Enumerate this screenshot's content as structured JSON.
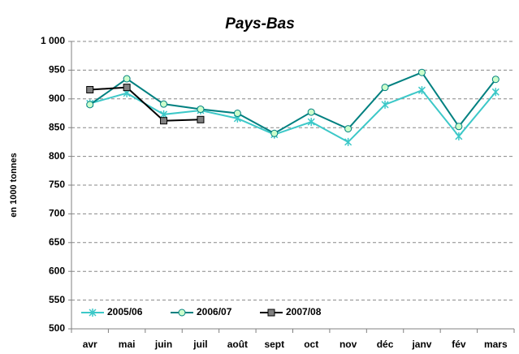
{
  "chart_data": {
    "type": "line",
    "title": "Pays-Bas",
    "y_label": "en 1000 tonnes",
    "categories": [
      "avr",
      "mai",
      "juin",
      "juil",
      "août",
      "sept",
      "oct",
      "nov",
      "déc",
      "janv",
      "fév",
      "mars"
    ],
    "series": [
      {
        "name": "2005/06",
        "color": "#3cc8c8",
        "marker": "star",
        "values": [
          892,
          910,
          873,
          880,
          866,
          838,
          860,
          825,
          890,
          915,
          835,
          912
        ]
      },
      {
        "name": "2006/07",
        "color": "#008080",
        "marker": "circle",
        "values": [
          890,
          935,
          891,
          882,
          875,
          840,
          877,
          848,
          920,
          946,
          852,
          934
        ]
      },
      {
        "name": "2007/08",
        "color": "#000000",
        "marker": "square",
        "values": [
          916,
          920,
          862,
          864,
          null,
          null,
          null,
          null,
          null,
          null,
          null,
          null
        ]
      }
    ],
    "ylim": [
      500,
      1000
    ],
    "yticks": [
      500,
      550,
      600,
      650,
      700,
      750,
      800,
      850,
      900,
      950,
      {
        "value": 1000,
        "label": "1 000"
      }
    ],
    "grid": true,
    "legend": "lower left"
  }
}
